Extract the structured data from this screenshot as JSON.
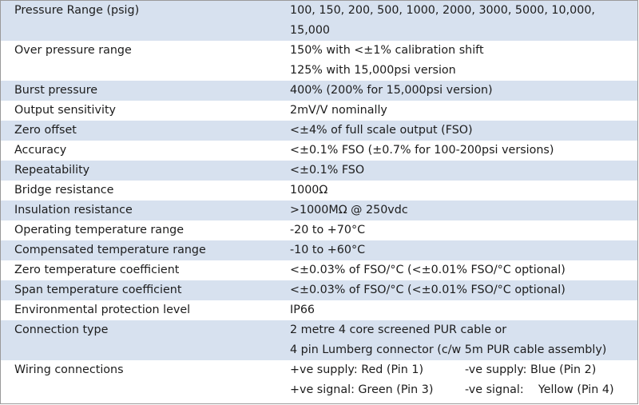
{
  "rows": [
    {
      "label": "Pressure Range (psig)",
      "lines": [
        "100, 150, 200, 500, 1000, 2000, 3000, 5000, 10,000,",
        "15,000"
      ]
    },
    {
      "label": "Over pressure range",
      "lines": [
        "150% with <±1% calibration shift",
        "125% with 15,000psi version"
      ]
    },
    {
      "label": "Burst pressure",
      "lines": [
        "400% (200% for 15,000psi version)"
      ]
    },
    {
      "label": "Output sensitivity",
      "lines": [
        "2mV/V nominally"
      ]
    },
    {
      "label": "Zero offset",
      "lines": [
        "<±4% of full scale output (FSO)"
      ]
    },
    {
      "label": "Accuracy",
      "lines": [
        "<±0.1% FSO (±0.7% for 100-200psi versions)"
      ]
    },
    {
      "label": "Repeatability",
      "lines": [
        "<±0.1% FSO"
      ]
    },
    {
      "label": "Bridge resistance",
      "lines": [
        "1000Ω"
      ]
    },
    {
      "label": "Insulation resistance",
      "lines": [
        ">1000MΩ @ 250vdc"
      ]
    },
    {
      "label": "Operating temperature range",
      "lines": [
        "-20 to +70°C"
      ]
    },
    {
      "label": "Compensated temperature range",
      "lines": [
        "-10 to +60°C"
      ]
    },
    {
      "label": "Zero temperature coefficient",
      "lines": [
        "<±0.03% of FSO/°C (<±0.01% FSO/°C optional)"
      ]
    },
    {
      "label": "Span temperature coefficient",
      "lines": [
        "<±0.03% of FSO/°C (<±0.01% FSO/°C optional)"
      ]
    },
    {
      "label": "Environmental protection level",
      "lines": [
        "IP66"
      ]
    },
    {
      "label": "Connection type",
      "lines": [
        "2 metre 4 core screened PUR cable or",
        "4 pin Lumberg connector (c/w 5m PUR cable assembly)"
      ]
    }
  ],
  "wiring": {
    "label": "Wiring connections",
    "lines": [
      [
        "+ve supply: Red (Pin 1)",
        "-ve supply: Blue (Pin 2)"
      ],
      [
        "+ve signal: Green (Pin 3)",
        "-ve signal:    Yellow (Pin 4)"
      ]
    ]
  },
  "colors": {
    "stripe": "#d7e1ef",
    "border": "#9a9a9a"
  }
}
